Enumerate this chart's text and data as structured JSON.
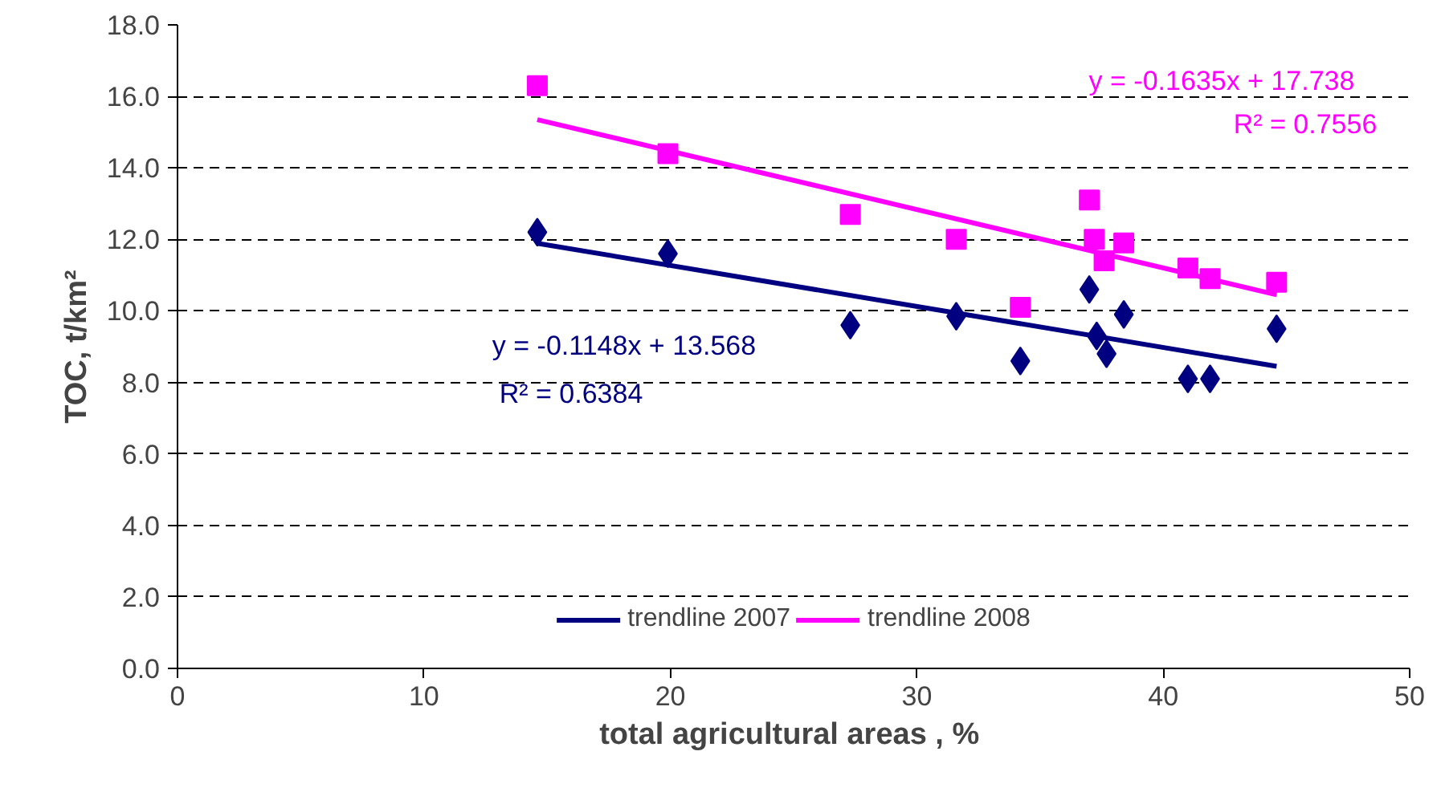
{
  "chart_data": {
    "type": "scatter",
    "xlabel": "total agricultural  areas , %",
    "ylabel": "TOC, t/km²",
    "xlim": [
      0,
      50
    ],
    "xticks": [
      0,
      10,
      20,
      30,
      40,
      50
    ],
    "ylim": [
      0,
      18
    ],
    "yticks": [
      {
        "value": 0,
        "label": "0.0"
      },
      {
        "value": 2,
        "label": "2.0"
      },
      {
        "value": 4,
        "label": "4.0"
      },
      {
        "value": 6,
        "label": "6.0"
      },
      {
        "value": 8,
        "label": "8.0"
      },
      {
        "value": 10,
        "label": "10.0"
      },
      {
        "value": 12,
        "label": "12.0"
      },
      {
        "value": 14,
        "label": "14.0"
      },
      {
        "value": 16,
        "label": "16.0"
      },
      {
        "value": 18,
        "label": "18.0"
      }
    ],
    "grid": "y",
    "legend": "bottom",
    "series": [
      {
        "marker": "diamond",
        "color": "#000080",
        "x": [
          14.6,
          19.9,
          27.3,
          31.6,
          34.2,
          37.0,
          37.3,
          37.7,
          38.4,
          41.0,
          41.9,
          44.6
        ],
        "values": [
          12.2,
          11.6,
          9.6,
          9.85,
          8.6,
          10.6,
          9.3,
          8.8,
          9.9,
          8.1,
          8.1,
          9.5
        ]
      },
      {
        "marker": "square",
        "color": "#ff00ff",
        "x": [
          14.6,
          19.9,
          27.3,
          31.6,
          34.2,
          37.0,
          37.2,
          37.6,
          38.4,
          41.0,
          41.9,
          44.6
        ],
        "values": [
          16.3,
          14.4,
          12.7,
          12.0,
          10.1,
          13.1,
          12.0,
          11.4,
          11.9,
          11.2,
          10.9,
          10.8
        ]
      },
      {
        "type": "line",
        "name": "trendline 2007",
        "color": "#000080",
        "x": [
          14.6,
          44.6
        ],
        "values": [
          11.89,
          8.45
        ]
      },
      {
        "type": "line",
        "name": "trendline 2008",
        "color": "#ff00ff",
        "x": [
          14.6,
          44.6
        ],
        "values": [
          15.35,
          10.45
        ]
      }
    ],
    "annotations": [
      "y = -0.1148x + 13.568",
      "R² = 0.6384",
      "y = -0.1635x + 17.738",
      "R² = 0.7556"
    ]
  }
}
